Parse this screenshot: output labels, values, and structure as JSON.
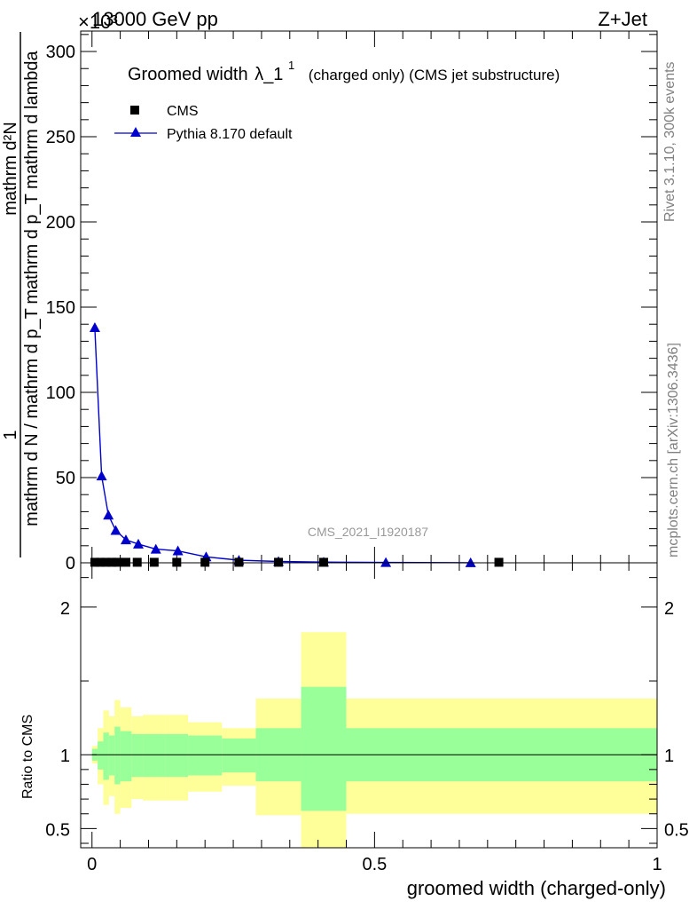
{
  "header": {
    "left": "13000 GeV pp",
    "right": "Z+Jet",
    "exponent": "×10³"
  },
  "side_text": {
    "rivet": "Rivet 3.1.10,  300k events",
    "site": "mcplots.cern.ch [arXiv:1306.3436]"
  },
  "watermark": "CMS_2021_I1920187",
  "chart_data": [
    {
      "type": "line",
      "title_main": "Groomed width",
      "title_symbol": "λ_1",
      "title_sup": "1",
      "title_rest": "(charged only) (CMS jet substructure)",
      "ylabel_line1": "1",
      "ylabel_line2": "mathrm d N / mathrm d p_T",
      "ylabel_numer": "mathrm d²N",
      "ylabel_denom": "mathrm d p_T mathrm d lambda",
      "ylim": [
        0,
        312
      ],
      "yticks": [
        0,
        50,
        100,
        150,
        200,
        250,
        300
      ],
      "xlim": [
        -0.02,
        1.0
      ],
      "xticks": [
        0,
        0.5,
        1
      ],
      "series": [
        {
          "name": "CMS",
          "marker": "square",
          "color": "#000000",
          "x": [
            0.005,
            0.015,
            0.025,
            0.035,
            0.045,
            0.06,
            0.08,
            0.11,
            0.15,
            0.2,
            0.26,
            0.33,
            0.41,
            0.72
          ],
          "y": [
            0.3,
            0.3,
            0.3,
            0.3,
            0.3,
            0.3,
            0.3,
            0.3,
            0.3,
            0.3,
            0.3,
            0.3,
            0.3,
            0.3
          ]
        },
        {
          "name": "Pythia 8.170 default",
          "marker": "triangle",
          "color": "#0000cc",
          "x": [
            0.005,
            0.017,
            0.029,
            0.042,
            0.06,
            0.082,
            0.113,
            0.152,
            0.202,
            0.26,
            0.33,
            0.41,
            0.52,
            0.67
          ],
          "y": [
            138,
            51,
            28,
            19,
            13.5,
            11,
            8,
            7,
            3.5,
            1.5,
            0.8,
            0.4,
            0.2,
            0.05
          ]
        }
      ]
    },
    {
      "type": "area",
      "ylabel": "Ratio to CMS",
      "xlabel": "groomed width (charged-only)",
      "ylim": [
        0.37,
        2.3
      ],
      "yticks": [
        0.5,
        1,
        2
      ],
      "xlim": [
        -0.02,
        1.0
      ],
      "xticks": [
        0,
        0.5,
        1
      ],
      "reference": 1,
      "bands": {
        "colors": {
          "outer": "#ffff99",
          "inner": "#99ff99"
        },
        "edges": [
          0,
          0.01,
          0.02,
          0.03,
          0.04,
          0.05,
          0.07,
          0.09,
          0.13,
          0.17,
          0.23,
          0.29,
          0.37,
          0.45,
          1.0
        ],
        "outer_lo": [
          0.94,
          0.8,
          0.66,
          0.72,
          0.6,
          0.64,
          0.7,
          0.69,
          0.69,
          0.75,
          0.79,
          0.59,
          0.3,
          0.6
        ],
        "outer_hi": [
          1.06,
          1.18,
          1.3,
          1.26,
          1.37,
          1.32,
          1.26,
          1.27,
          1.27,
          1.22,
          1.18,
          1.38,
          1.83,
          1.38
        ],
        "inner_lo": [
          0.96,
          0.9,
          0.83,
          0.86,
          0.8,
          0.82,
          0.85,
          0.85,
          0.85,
          0.86,
          0.88,
          0.82,
          0.62,
          0.82
        ],
        "inner_hi": [
          1.04,
          1.09,
          1.15,
          1.13,
          1.19,
          1.16,
          1.14,
          1.14,
          1.14,
          1.13,
          1.11,
          1.18,
          1.46,
          1.18
        ]
      }
    }
  ]
}
